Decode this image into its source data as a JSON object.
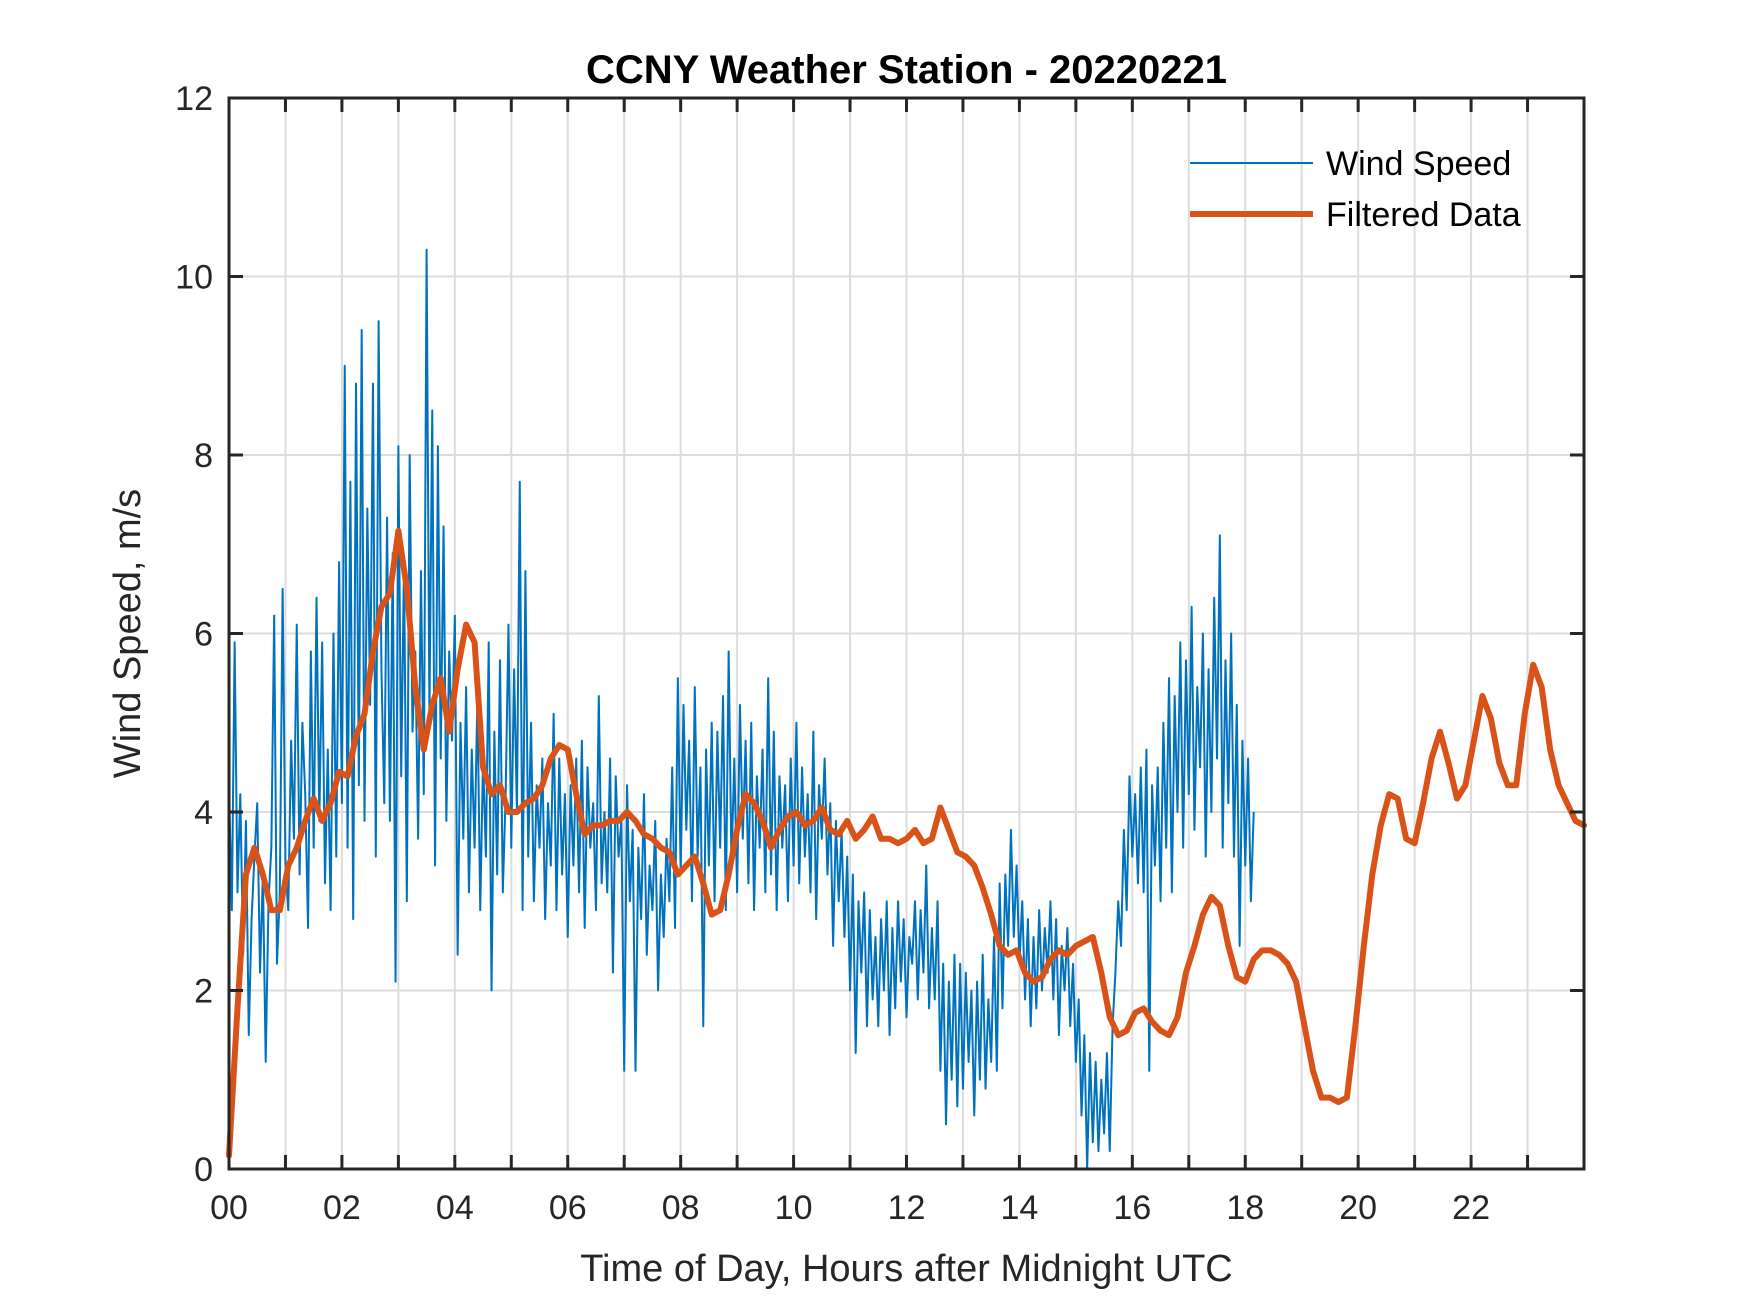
{
  "chart_data": {
    "type": "line",
    "title": "CCNY Weather Station - 20220221",
    "xlabel": "Time of Day, Hours after Midnight UTC",
    "ylabel": "Wind Speed, m/s",
    "xlim": [
      0,
      24
    ],
    "ylim": [
      0,
      12
    ],
    "grid": true,
    "x_grid_step_hours": 1,
    "x_ticks": [
      0,
      2,
      4,
      6,
      8,
      10,
      12,
      14,
      16,
      18,
      20,
      22
    ],
    "x_tick_labels": [
      "00",
      "02",
      "04",
      "06",
      "08",
      "10",
      "12",
      "14",
      "16",
      "18",
      "20",
      "22"
    ],
    "y_ticks": [
      0,
      2,
      4,
      6,
      8,
      10,
      12
    ],
    "y_tick_labels": [
      "0",
      "2",
      "4",
      "6",
      "8",
      "10",
      "12"
    ],
    "legend": {
      "placement": "top-right",
      "entries": [
        {
          "label": "Wind Speed",
          "color": "#0072BD",
          "style": "thin"
        },
        {
          "label": "Filtered Data",
          "color": "#D95319",
          "style": "thick"
        }
      ]
    },
    "series": [
      {
        "name": "Filtered Data",
        "color": "#D95319",
        "x": [
          0.0,
          0.15,
          0.3,
          0.45,
          0.6,
          0.75,
          0.9,
          1.05,
          1.2,
          1.35,
          1.5,
          1.65,
          1.8,
          1.95,
          2.1,
          2.25,
          2.4,
          2.55,
          2.7,
          2.85,
          3.0,
          3.15,
          3.3,
          3.45,
          3.6,
          3.75,
          3.9,
          4.05,
          4.2,
          4.35,
          4.5,
          4.65,
          4.8,
          4.95,
          5.1,
          5.25,
          5.4,
          5.55,
          5.7,
          5.85,
          6.0,
          6.15,
          6.3,
          6.45,
          6.6,
          6.75,
          6.9,
          7.05,
          7.2,
          7.35,
          7.5,
          7.65,
          7.8,
          7.95,
          8.1,
          8.25,
          8.4,
          8.55,
          8.7,
          8.85,
          9.0,
          9.15,
          9.3,
          9.45,
          9.6,
          9.75,
          9.9,
          10.05,
          10.2,
          10.35,
          10.5,
          10.65,
          10.8,
          10.95,
          11.1,
          11.25,
          11.4,
          11.55,
          11.7,
          11.85,
          12.0,
          12.15,
          12.3,
          12.45,
          12.6,
          12.75,
          12.9,
          13.05,
          13.2,
          13.35,
          13.5,
          13.65,
          13.8,
          13.95,
          14.1,
          14.25,
          14.4,
          14.55,
          14.7,
          14.85,
          15.0,
          15.15,
          15.3,
          15.45,
          15.6,
          15.75,
          15.9,
          16.05,
          16.2,
          16.35,
          16.5,
          16.65,
          16.8,
          16.95,
          17.1,
          17.25,
          17.4,
          17.55,
          17.7,
          17.85,
          18.0,
          18.15,
          18.3,
          18.45,
          18.6,
          18.75,
          18.9,
          19.05,
          19.2,
          19.35,
          19.5,
          19.65,
          19.8,
          19.95,
          20.1,
          20.25,
          20.4,
          20.55,
          20.7,
          20.85,
          21.0,
          21.15,
          21.3,
          21.45,
          21.6,
          21.75,
          21.9,
          22.05,
          22.2,
          22.35,
          22.5,
          22.65,
          22.8,
          22.95,
          23.1,
          23.25,
          23.4,
          23.55,
          23.7,
          23.85,
          24.0
        ],
        "y": [
          0.15,
          1.8,
          3.3,
          3.6,
          3.3,
          2.9,
          2.9,
          3.4,
          3.6,
          3.9,
          4.15,
          3.9,
          4.1,
          4.45,
          4.4,
          4.85,
          5.1,
          5.8,
          6.3,
          6.45,
          7.15,
          6.5,
          5.4,
          4.7,
          5.2,
          5.5,
          4.9,
          5.6,
          6.1,
          5.9,
          4.5,
          4.2,
          4.3,
          4.0,
          4.0,
          4.1,
          4.15,
          4.3,
          4.6,
          4.75,
          4.7,
          4.2,
          3.75,
          3.85,
          3.85,
          3.9,
          3.9,
          4.0,
          3.9,
          3.75,
          3.7,
          3.6,
          3.55,
          3.3,
          3.4,
          3.5,
          3.2,
          2.85,
          2.9,
          3.3,
          3.8,
          4.2,
          4.1,
          3.9,
          3.6,
          3.8,
          3.95,
          4.0,
          3.85,
          3.9,
          4.05,
          3.8,
          3.75,
          3.9,
          3.7,
          3.8,
          3.95,
          3.7,
          3.7,
          3.65,
          3.7,
          3.8,
          3.65,
          3.7,
          4.05,
          3.8,
          3.55,
          3.5,
          3.4,
          3.15,
          2.85,
          2.5,
          2.4,
          2.45,
          2.2,
          2.1,
          2.15,
          2.35,
          2.45,
          2.4,
          2.5,
          2.55,
          2.6,
          2.2,
          1.7,
          1.5,
          1.55,
          1.75,
          1.8,
          1.65,
          1.55,
          1.5,
          1.7,
          2.2,
          2.5,
          2.85,
          3.05,
          2.95,
          2.5,
          2.15,
          2.1,
          2.35,
          2.45,
          2.45,
          2.4,
          2.3,
          2.1,
          1.6,
          1.1,
          0.8,
          0.8,
          0.75,
          0.8,
          1.6,
          2.5,
          3.3,
          3.85,
          4.2,
          4.15,
          3.7,
          3.65,
          4.1,
          4.6,
          4.9,
          4.55,
          4.15,
          4.3,
          4.8,
          5.3,
          5.05,
          4.55,
          4.3,
          4.3,
          5.1,
          5.65,
          5.4,
          4.7,
          4.3,
          4.1,
          3.9,
          3.85
        ]
      },
      {
        "name": "Wind Speed",
        "color": "#0072BD",
        "x_start": 0,
        "x_step_hours": 0.05,
        "y": [
          4.3,
          2.9,
          5.9,
          3.1,
          4.2,
          2.4,
          3.9,
          1.5,
          2.8,
          3.5,
          4.1,
          2.2,
          3.3,
          1.2,
          3.0,
          3.6,
          6.2,
          2.3,
          3.1,
          6.5,
          3.4,
          2.9,
          4.8,
          3.7,
          6.1,
          3.3,
          5.0,
          4.2,
          2.7,
          5.8,
          3.6,
          6.4,
          3.9,
          5.9,
          3.2,
          4.7,
          2.9,
          6.0,
          3.5,
          6.8,
          4.1,
          9.0,
          3.6,
          7.7,
          2.8,
          8.8,
          4.3,
          9.4,
          3.9,
          7.4,
          5.2,
          8.8,
          3.5,
          9.5,
          5.6,
          4.1,
          7.3,
          3.9,
          6.9,
          2.1,
          8.1,
          4.4,
          6.8,
          3.0,
          8.0,
          4.9,
          5.8,
          3.7,
          6.7,
          4.2,
          10.3,
          5.1,
          8.5,
          3.4,
          8.1,
          4.6,
          7.2,
          3.9,
          5.8,
          4.8,
          6.2,
          2.4,
          5.0,
          3.7,
          5.4,
          3.1,
          4.7,
          3.6,
          5.3,
          2.9,
          4.6,
          3.5,
          5.9,
          2.0,
          4.9,
          3.3,
          5.7,
          3.1,
          4.2,
          6.1,
          3.6,
          5.6,
          4.0,
          7.7,
          2.9,
          6.7,
          3.5,
          5.0,
          3.0,
          4.3,
          3.6,
          4.6,
          2.8,
          4.1,
          3.4,
          5.1,
          2.9,
          4.6,
          3.3,
          4.2,
          2.6,
          4.3,
          3.4,
          4.6,
          3.1,
          4.8,
          2.7,
          4.5,
          3.6,
          4.1,
          2.9,
          5.3,
          3.2,
          4.0,
          3.1,
          4.6,
          2.2,
          4.4,
          3.5,
          3.9,
          1.1,
          4.3,
          3.0,
          3.8,
          1.1,
          3.6,
          2.8,
          4.2,
          2.4,
          3.4,
          2.9,
          3.9,
          2.0,
          3.3,
          2.6,
          3.7,
          3.0,
          4.5,
          2.7,
          5.5,
          3.3,
          5.2,
          3.8,
          4.8,
          3.0,
          5.4,
          3.5,
          4.5,
          1.6,
          4.7,
          3.4,
          5.0,
          3.0,
          4.9,
          3.6,
          5.3,
          2.9,
          5.8,
          3.4,
          4.6,
          3.1,
          5.2,
          3.7,
          4.8,
          3.2,
          5.0,
          2.9,
          4.4,
          3.6,
          4.7,
          3.1,
          5.5,
          3.3,
          4.9,
          2.9,
          4.4,
          3.6,
          4.3,
          3.0,
          4.6,
          3.4,
          5.0,
          3.2,
          4.5,
          3.5,
          4.2,
          3.1,
          4.9,
          2.8,
          4.3,
          3.7,
          4.6,
          3.3,
          4.1,
          2.5,
          3.9,
          3.0,
          3.8,
          2.6,
          3.5,
          2.0,
          3.3,
          1.3,
          3.0,
          2.2,
          3.1,
          1.6,
          2.9,
          1.9,
          2.6,
          1.6,
          2.8,
          2.0,
          3.0,
          1.5,
          2.7,
          1.8,
          3.0,
          2.1,
          2.8,
          1.7,
          2.6,
          2.3,
          3.0,
          1.9,
          2.9,
          2.2,
          3.4,
          1.8,
          2.7,
          1.9,
          3.0,
          1.1,
          2.3,
          0.5,
          2.1,
          1.0,
          2.4,
          0.7,
          2.3,
          0.9,
          2.2,
          1.2,
          2.0,
          0.6,
          2.1,
          1.0,
          2.4,
          0.9,
          1.9,
          1.2,
          2.6,
          1.1,
          3.2,
          1.8,
          3.3,
          2.5,
          3.8,
          2.6,
          3.4,
          2.3,
          3.0,
          1.9,
          2.8,
          1.6,
          2.6,
          1.8,
          2.9,
          2.0,
          2.7,
          2.2,
          3.0,
          1.9,
          2.8,
          1.5,
          2.5,
          2.0,
          2.7,
          1.6,
          2.3,
          1.2,
          1.9,
          0.6,
          1.5,
          0.0,
          1.3,
          0.3,
          1.2,
          0.2,
          1.0,
          0.4,
          1.3,
          0.2,
          1.6,
          2.2,
          3.0,
          2.5,
          3.8,
          2.9,
          4.4,
          3.5,
          4.2,
          3.2,
          4.5,
          3.1,
          4.7,
          1.1,
          4.3,
          3.4,
          4.5,
          3.0,
          5.0,
          3.6,
          5.5,
          3.1,
          5.3,
          4.0,
          5.9,
          3.6,
          5.7,
          4.2,
          6.3,
          3.8,
          5.4,
          4.5,
          6.0,
          3.5,
          5.6,
          4.0,
          6.4,
          4.6,
          7.1,
          3.6,
          5.7,
          4.1,
          6.0,
          3.5,
          5.2,
          2.5,
          4.8,
          3.4,
          4.6,
          3.0,
          4.0
        ]
      }
    ]
  }
}
